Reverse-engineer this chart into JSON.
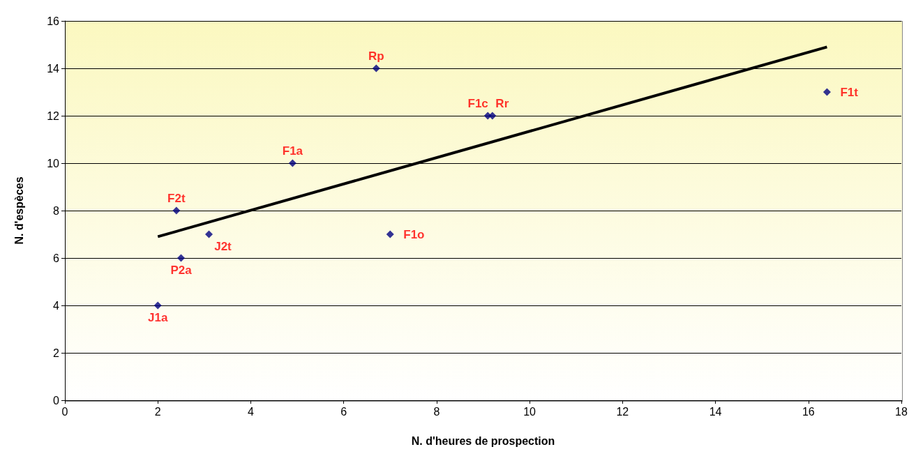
{
  "chart_data": {
    "type": "scatter",
    "xlabel": "N. d'heures de prospection",
    "ylabel": "N. d'espèces",
    "xlim": [
      0,
      18
    ],
    "xticks": [
      0,
      2,
      4,
      6,
      8,
      10,
      12,
      14,
      16,
      18
    ],
    "ylim": [
      0,
      16
    ],
    "yticks": [
      0,
      2,
      4,
      6,
      8,
      10,
      12,
      14,
      16
    ],
    "grid": "y",
    "series": [
      {
        "color": "#000080",
        "marker": "diamond",
        "x": [
          2.0,
          2.4,
          2.5,
          3.1,
          4.9,
          6.7,
          7.0,
          9.1,
          9.2,
          16.4
        ],
        "values": [
          4,
          8,
          6,
          7,
          10,
          14,
          7,
          12,
          12,
          13
        ]
      },
      {
        "type": "line",
        "marker": "none",
        "color": "#000000",
        "x": [
          2.0,
          16.4
        ],
        "values": [
          6.9,
          14.9
        ]
      }
    ],
    "annotations": [
      {
        "text": "J1a",
        "x": 2.0,
        "y": 4
      },
      {
        "text": "F2t",
        "x": 2.4,
        "y": 8
      },
      {
        "text": "P2a",
        "x": 2.5,
        "y": 6
      },
      {
        "text": "J2t",
        "x": 3.1,
        "y": 7
      },
      {
        "text": "F1a",
        "x": 4.9,
        "y": 10
      },
      {
        "text": "Rp",
        "x": 6.7,
        "y": 14
      },
      {
        "text": "F1o",
        "x": 7.0,
        "y": 7
      },
      {
        "text": "F1c",
        "x": 9.1,
        "y": 12
      },
      {
        "text": "Rr",
        "x": 9.2,
        "y": 12
      },
      {
        "text": "F1t",
        "x": 16.4,
        "y": 13
      }
    ]
  }
}
